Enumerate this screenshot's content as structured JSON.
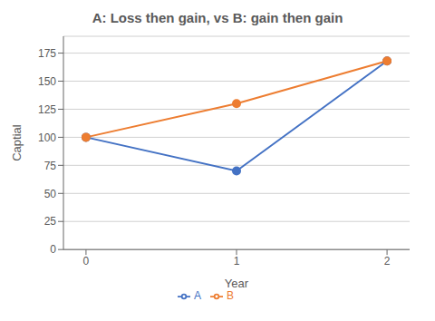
{
  "chart_data": {
    "type": "line",
    "title": "A: Loss then gain, vs B: gain then gain",
    "xlabel": "Year",
    "ylabel": "Captial",
    "x": [
      0,
      1,
      2
    ],
    "series": [
      {
        "name": "A",
        "color": "#4472C4",
        "values": [
          100,
          70,
          168
        ]
      },
      {
        "name": "B",
        "color": "#ED7D31",
        "values": [
          100,
          130,
          168
        ]
      }
    ],
    "xlim": [
      -0.15,
      2.15
    ],
    "ylim": [
      0,
      190
    ],
    "xticks": [
      0,
      1,
      2
    ],
    "yticks": [
      0,
      25,
      50,
      75,
      100,
      125,
      150,
      175
    ],
    "grid": true,
    "legend": "bottom",
    "marker": "circle"
  }
}
